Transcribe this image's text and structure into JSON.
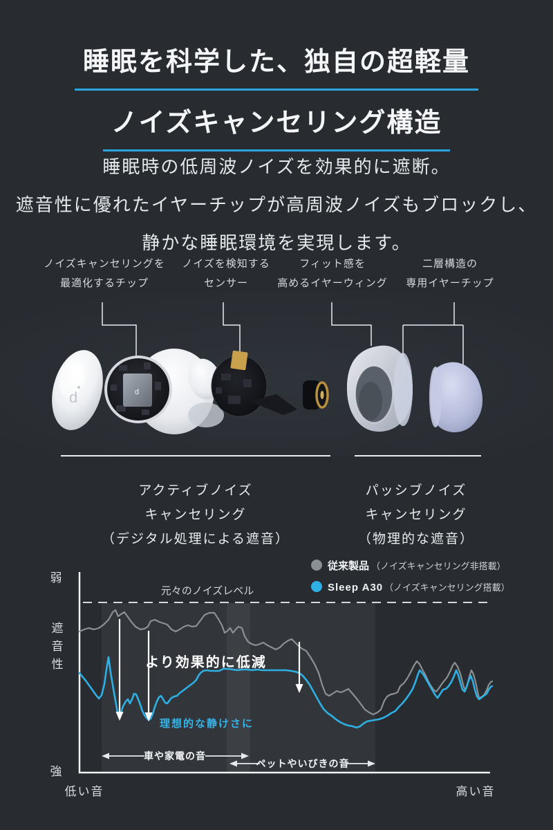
{
  "colors": {
    "background": "#282c31",
    "accent_blue": "#2fb0e4",
    "underline_blue": "#2aa7de",
    "gray_series": "#8b9095",
    "axis_white": "#f2f4f5"
  },
  "title": {
    "line1": "睡眠を科学した、独自の超軽量",
    "line2": "ノイズキャンセリング構造"
  },
  "intro": [
    "睡眠時の低周波ノイズを効果的に遮断。",
    "遮音性に優れたイヤーチップが高周波ノイズもブロックし、",
    "静かな睡眠環境を実現します。"
  ],
  "callouts": [
    {
      "line1": "ノイズキャンセリングを",
      "line2": "最適化するチップ"
    },
    {
      "line1": "ノイズを検知する",
      "line2": "センサー"
    },
    {
      "line1": "フィット感を",
      "line2": "高めるイヤーウィング"
    },
    {
      "line1": "二層構造の",
      "line2": "専用イヤーチップ"
    }
  ],
  "figure": {
    "captions": {
      "active": {
        "line1": "アクティブノイズ",
        "line2": "キャンセリング",
        "line3": "（デジタル処理による遮音）"
      },
      "passive": {
        "line1": "パッシブノイズ",
        "line2": "キャンセリング",
        "line3": "（物理的な遮音）"
      }
    }
  },
  "chart_data": {
    "type": "line",
    "x_axis": {
      "left_label": "低い音",
      "right_label": "高い音",
      "scale": "qualitative (sound frequency, low to high)"
    },
    "y_axis": {
      "label": "遮音性",
      "top_label": "弱",
      "bottom_label": "強"
    },
    "baseline": {
      "label": "元々のノイズレベル",
      "style": "dashed"
    },
    "legend": [
      {
        "label": "従来製品",
        "note": "（ノイズキャンセリング非搭載）",
        "color": "#8b9095"
      },
      {
        "label": "Sleep A30",
        "note": "（ノイズキャンセリング搭載）",
        "color": "#2fb0e4"
      }
    ],
    "annotations": [
      {
        "text": "より効果的に低減",
        "color": "#ffffff"
      },
      {
        "text": "理想的な静けさに",
        "color": "#36b3e6"
      }
    ],
    "bands": [
      {
        "label": "車や家電の音"
      },
      {
        "label": "ペットやいびきの音"
      }
    ],
    "plot": {
      "x0": 115,
      "x1": 709,
      "y0": 827,
      "y1": 1117,
      "baseline_y": 871,
      "band_rects": [
        [
          147,
          362
        ],
        [
          328,
          543
        ]
      ],
      "down_arrows": [
        [
          173,
          895,
          1042
        ],
        [
          215,
          912,
          1043
        ],
        [
          433,
          928,
          1002
        ]
      ],
      "range_arrows": [
        {
          "y": 1093,
          "x1": 147,
          "x2": 360,
          "gap": [
            209,
            297
          ]
        },
        {
          "y": 1104,
          "x1": 332,
          "x2": 543,
          "gap": [
            376,
            500
          ]
        }
      ]
    },
    "series": [
      {
        "name": "従来製品",
        "color": "#8b9095",
        "points": [
          [
            115,
            913
          ],
          [
            122,
            910
          ],
          [
            128,
            908
          ],
          [
            136,
            910
          ],
          [
            143,
            908
          ],
          [
            150,
            903
          ],
          [
            157,
            896
          ],
          [
            163,
            885
          ],
          [
            167,
            882
          ],
          [
            171,
            891
          ],
          [
            175,
            888
          ],
          [
            180,
            885
          ],
          [
            185,
            892
          ],
          [
            190,
            899
          ],
          [
            196,
            906
          ],
          [
            203,
            910
          ],
          [
            209,
            909
          ],
          [
            214,
            906
          ],
          [
            218,
            898
          ],
          [
            224,
            896
          ],
          [
            230,
            899
          ],
          [
            236,
            901
          ],
          [
            242,
            903
          ],
          [
            248,
            910
          ],
          [
            254,
            913
          ],
          [
            260,
            910
          ],
          [
            266,
            906
          ],
          [
            272,
            904
          ],
          [
            278,
            906
          ],
          [
            284,
            905
          ],
          [
            290,
            897
          ],
          [
            296,
            889
          ],
          [
            303,
            886
          ],
          [
            310,
            886
          ],
          [
            316,
            895
          ],
          [
            321,
            904
          ],
          [
            325,
            915
          ],
          [
            329,
            912
          ],
          [
            333,
            908
          ],
          [
            337,
            915
          ],
          [
            341,
            910
          ],
          [
            345,
            906
          ],
          [
            350,
            908
          ],
          [
            354,
            920
          ],
          [
            359,
            928
          ],
          [
            364,
            931
          ],
          [
            370,
            933
          ],
          [
            376,
            931
          ],
          [
            381,
            929
          ],
          [
            387,
            933
          ],
          [
            393,
            936
          ],
          [
            399,
            939
          ],
          [
            405,
            936
          ],
          [
            411,
            930
          ],
          [
            417,
            926
          ],
          [
            422,
            924
          ],
          [
            427,
            929
          ],
          [
            432,
            934
          ],
          [
            437,
            938
          ],
          [
            443,
            941
          ],
          [
            449,
            950
          ],
          [
            455,
            960
          ],
          [
            461,
            973
          ],
          [
            466,
            990
          ],
          [
            471,
            1003
          ],
          [
            476,
            1006
          ],
          [
            481,
            1003
          ],
          [
            487,
            999
          ],
          [
            493,
            1001
          ],
          [
            498,
            999
          ],
          [
            504,
            996
          ],
          [
            510,
            1003
          ],
          [
            516,
            1010
          ],
          [
            522,
            1018
          ],
          [
            528,
            1026
          ],
          [
            534,
            1030
          ],
          [
            540,
            1033
          ],
          [
            546,
            1030
          ],
          [
            551,
            1026
          ],
          [
            556,
            1013
          ],
          [
            560,
            1007
          ],
          [
            565,
            1004
          ],
          [
            570,
            1003
          ],
          [
            575,
            1001
          ],
          [
            579,
            992
          ],
          [
            584,
            988
          ],
          [
            589,
            981
          ],
          [
            594,
            972
          ],
          [
            599,
            962
          ],
          [
            603,
            956
          ],
          [
            607,
            960
          ],
          [
            611,
            968
          ],
          [
            615,
            975
          ],
          [
            619,
            984
          ],
          [
            623,
            991
          ],
          [
            627,
            997
          ],
          [
            631,
            1000
          ],
          [
            635,
            995
          ],
          [
            639,
            989
          ],
          [
            643,
            984
          ],
          [
            647,
            979
          ],
          [
            651,
            971
          ],
          [
            655,
            962
          ],
          [
            658,
            958
          ],
          [
            662,
            964
          ],
          [
            666,
            974
          ],
          [
            670,
            990
          ],
          [
            673,
            999
          ],
          [
            676,
            990
          ],
          [
            679,
            978
          ],
          [
            682,
            969
          ],
          [
            685,
            975
          ],
          [
            688,
            986
          ],
          [
            691,
            1000
          ],
          [
            693,
            1009
          ],
          [
            696,
            1008
          ],
          [
            700,
            1005
          ],
          [
            704,
            998
          ],
          [
            707,
            990
          ],
          [
            710,
            986
          ],
          [
            712,
            985
          ]
        ]
      },
      {
        "name": "Sleep A30",
        "color": "#2fb0e4",
        "points": [
          [
            115,
            973
          ],
          [
            119,
            978
          ],
          [
            124,
            984
          ],
          [
            129,
            991
          ],
          [
            134,
            998
          ],
          [
            139,
            1005
          ],
          [
            143,
            1010
          ],
          [
            147,
            1005
          ],
          [
            151,
            989
          ],
          [
            154,
            968
          ],
          [
            157,
            950
          ],
          [
            160,
            972
          ],
          [
            163,
            990
          ],
          [
            167,
            1013
          ],
          [
            170,
            1030
          ],
          [
            172,
            1037
          ],
          [
            175,
            1030
          ],
          [
            178,
            1021
          ],
          [
            182,
            1014
          ],
          [
            185,
            1011
          ],
          [
            188,
            1017
          ],
          [
            191,
            1011
          ],
          [
            194,
            1003
          ],
          [
            197,
            1004
          ],
          [
            200,
            1011
          ],
          [
            203,
            1019
          ],
          [
            206,
            1028
          ],
          [
            209,
            1034
          ],
          [
            212,
            1038
          ],
          [
            215,
            1041
          ],
          [
            218,
            1039
          ],
          [
            221,
            1032
          ],
          [
            224,
            1022
          ],
          [
            227,
            1014
          ],
          [
            230,
            1008
          ],
          [
            233,
            1006
          ],
          [
            236,
            1011
          ],
          [
            239,
            1016
          ],
          [
            242,
            1017
          ],
          [
            245,
            1013
          ],
          [
            248,
            1009
          ],
          [
            252,
            1007
          ],
          [
            256,
            1006
          ],
          [
            260,
            1002
          ],
          [
            264,
            999
          ],
          [
            268,
            996
          ],
          [
            272,
            993
          ],
          [
            276,
            990
          ],
          [
            280,
            987
          ],
          [
            284,
            983
          ],
          [
            287,
            977
          ],
          [
            290,
            973
          ],
          [
            294,
            970
          ],
          [
            299,
            969
          ],
          [
            305,
            970
          ],
          [
            311,
            970
          ],
          [
            317,
            970
          ],
          [
            323,
            967
          ],
          [
            330,
            967
          ],
          [
            337,
            968
          ],
          [
            344,
            969
          ],
          [
            351,
            968
          ],
          [
            358,
            968
          ],
          [
            365,
            969
          ],
          [
            372,
            968
          ],
          [
            379,
            969
          ],
          [
            386,
            969
          ],
          [
            393,
            969
          ],
          [
            400,
            969
          ],
          [
            407,
            969
          ],
          [
            414,
            969
          ],
          [
            421,
            970
          ],
          [
            427,
            971
          ],
          [
            433,
            973
          ],
          [
            438,
            977
          ],
          [
            443,
            983
          ],
          [
            448,
            990
          ],
          [
            453,
            999
          ],
          [
            458,
            1008
          ],
          [
            463,
            1017
          ],
          [
            468,
            1025
          ],
          [
            474,
            1031
          ],
          [
            480,
            1035
          ],
          [
            486,
            1040
          ],
          [
            492,
            1044
          ],
          [
            498,
            1047
          ],
          [
            504,
            1049
          ],
          [
            510,
            1050
          ],
          [
            516,
            1052
          ],
          [
            521,
            1050
          ],
          [
            526,
            1046
          ],
          [
            531,
            1043
          ],
          [
            536,
            1042
          ],
          [
            542,
            1041
          ],
          [
            548,
            1040
          ],
          [
            554,
            1038
          ],
          [
            560,
            1035
          ],
          [
            566,
            1031
          ],
          [
            572,
            1028
          ],
          [
            577,
            1022
          ],
          [
            582,
            1017
          ],
          [
            587,
            1011
          ],
          [
            592,
            1004
          ],
          [
            597,
            996
          ],
          [
            601,
            986
          ],
          [
            604,
            977
          ],
          [
            607,
            969
          ],
          [
            610,
            972
          ],
          [
            613,
            976
          ],
          [
            617,
            983
          ],
          [
            621,
            990
          ],
          [
            625,
            997
          ],
          [
            629,
            1004
          ],
          [
            633,
            1009
          ],
          [
            637,
            1003
          ],
          [
            641,
            997
          ],
          [
            645,
            996
          ],
          [
            649,
            992
          ],
          [
            653,
            986
          ],
          [
            657,
            977
          ],
          [
            660,
            969
          ],
          [
            663,
            976
          ],
          [
            666,
            987
          ],
          [
            669,
            997
          ],
          [
            672,
            1000
          ],
          [
            675,
            993
          ],
          [
            678,
            984
          ],
          [
            681,
            977
          ],
          [
            684,
            985
          ],
          [
            687,
            997
          ],
          [
            690,
            1007
          ],
          [
            693,
            1011
          ],
          [
            696,
            1009
          ],
          [
            700,
            1006
          ],
          [
            704,
            1003
          ],
          [
            707,
            997
          ],
          [
            710,
            993
          ],
          [
            712,
            992
          ]
        ]
      }
    ]
  }
}
